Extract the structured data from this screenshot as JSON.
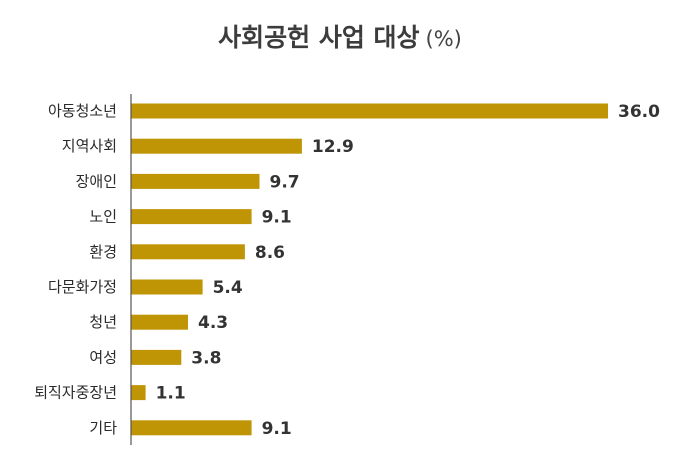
{
  "chart_data": {
    "type": "bar",
    "orientation": "horizontal",
    "title": "사회공헌 사업 대상",
    "title_unit": "(%)",
    "categories": [
      "아동청소년",
      "지역사회",
      "장애인",
      "노인",
      "환경",
      "다문화가정",
      "청년",
      "여성",
      "퇴직자중장년",
      "기타"
    ],
    "values": [
      36.0,
      12.9,
      9.7,
      9.1,
      8.6,
      5.4,
      4.3,
      3.8,
      1.1,
      9.1
    ],
    "value_labels": [
      "36.0",
      "12.9",
      "9.7",
      "9.1",
      "8.6",
      "5.4",
      "4.3",
      "3.8",
      "1.1",
      "9.1"
    ],
    "xlim": [
      0,
      36.0
    ],
    "grid": false,
    "legend": "none",
    "bar_color": "#C09505",
    "axis_color": "#555555"
  }
}
